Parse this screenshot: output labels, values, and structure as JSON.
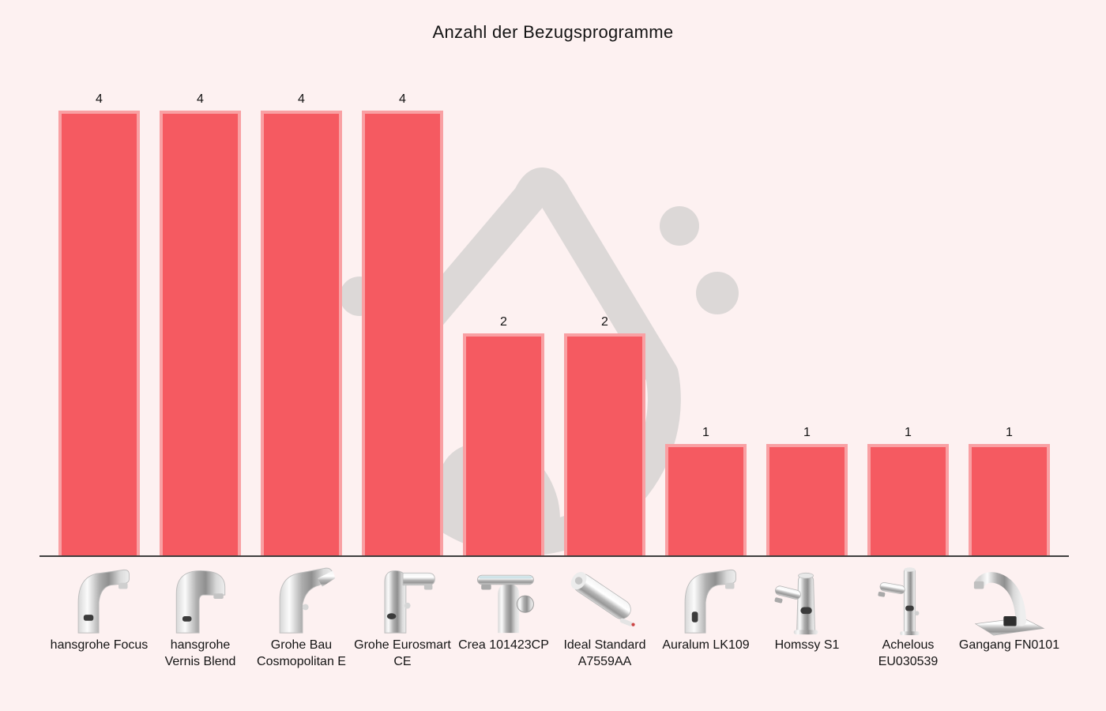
{
  "title": "Anzahl der Bezugsprogramme",
  "chart_data": {
    "type": "bar",
    "title": "Anzahl der Bezugsprogramme",
    "categories": [
      "hansgrohe Focus",
      "hansgrohe Vernis Blend",
      "Grohe Bau Cosmopolitan E",
      "Grohe Eurosmart CE",
      "Crea 101423CP",
      "Ideal Standard A7559AA",
      "Auralum LK109",
      "Homssy S1",
      "Achelous EU030539",
      "Gangang FN0101"
    ],
    "values": [
      4,
      4,
      4,
      4,
      2,
      2,
      1,
      1,
      1,
      1
    ],
    "value_labels": [
      "4",
      "4",
      "4",
      "4",
      "2",
      "2",
      "1",
      "1",
      "1",
      "1"
    ],
    "category_icons": [
      "faucet-hansgrohe-focus-icon",
      "faucet-hansgrohe-vernis-blend-icon",
      "faucet-grohe-bau-cosmopolitan-icon",
      "faucet-grohe-eurosmart-icon",
      "faucet-crea-icon",
      "faucet-ideal-standard-icon",
      "faucet-auralum-icon",
      "faucet-homssy-icon",
      "faucet-achelous-icon",
      "faucet-gangang-icon"
    ],
    "xlabel": "",
    "ylabel": "",
    "ylim": [
      0,
      4.3
    ],
    "grid": false,
    "legend": false,
    "bar_color": "#f55a61",
    "bar_edge_color": "#f9a0a3",
    "axis_line_color": "#3f3f3f",
    "background_color": "#fdf1f1",
    "text_color": "#141414"
  },
  "watermark": {
    "name": "water-drop-logo",
    "color": "#dcd8d7",
    "elements": [
      "drop-outline",
      "inner-wave",
      "bubble-dot-left",
      "bubble-dot-small-right",
      "bubble-dot-large-right"
    ]
  }
}
